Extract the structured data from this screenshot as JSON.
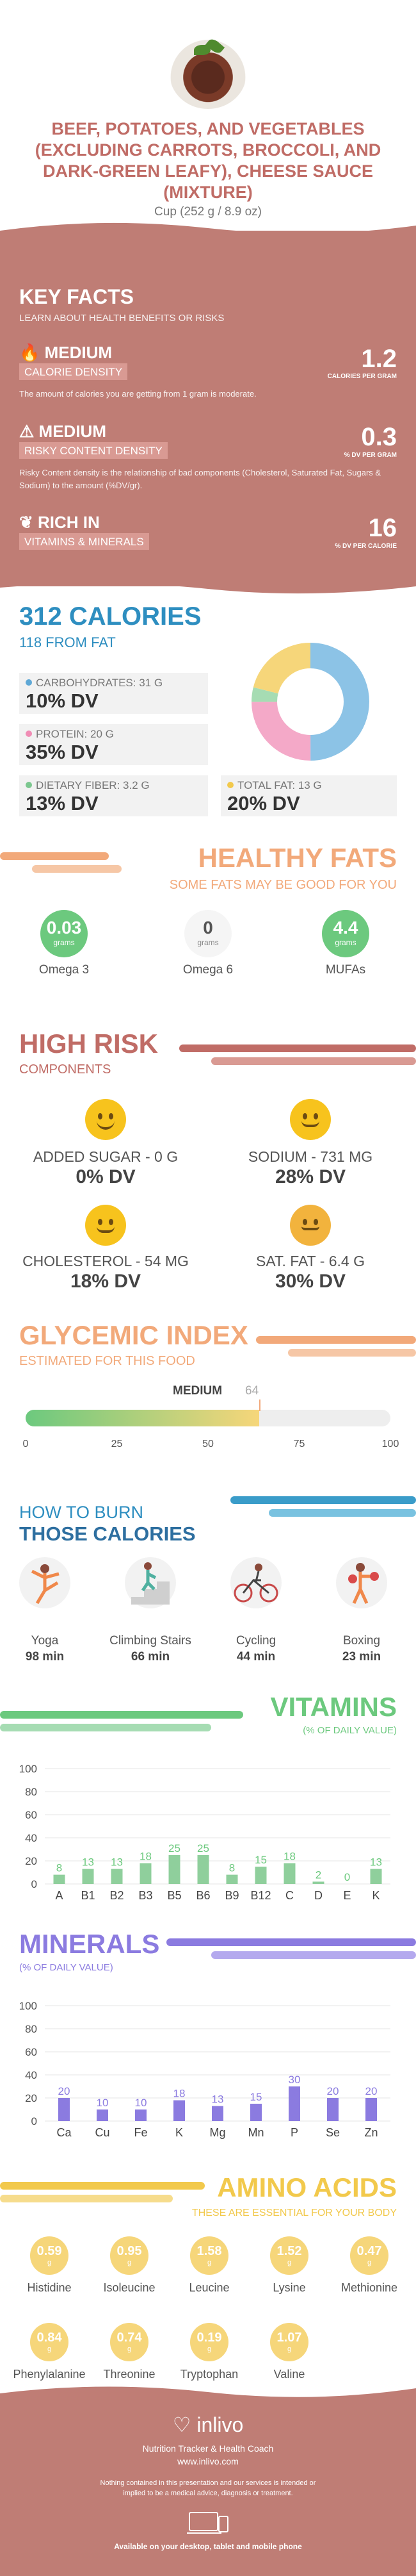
{
  "header": {
    "title": "BEEF, POTATOES, AND VEGETABLES (EXCLUDING CARROTS, BROCCOLI, AND DARK-GREEN LEAFY), CHEESE SAUCE (MIXTURE)",
    "serving": "Cup (252 g / 8.9 oz)"
  },
  "key_facts": {
    "heading": "KEY FACTS",
    "subheading": "LEARN ABOUT HEALTH BENEFITS OR RISKS",
    "calorie_density": {
      "level": "MEDIUM",
      "tag": "CALORIE DENSITY",
      "value": "1.2",
      "unit": "CALORIES PER GRAM",
      "desc": "The amount of calories you are getting from 1 gram is moderate."
    },
    "risky": {
      "level": "MEDIUM",
      "tag": "RISKY CONTENT DENSITY",
      "value": "0.3",
      "unit": "% DV PER GRAM",
      "desc": "Risky Content density is the relationship of bad components (Cholesterol, Saturated Fat, Sugars & Sodium) to the amount (%DV/gr)."
    },
    "vitamins": {
      "level": "RICH IN",
      "tag": "VITAMINS & MINERALS",
      "value": "16",
      "unit": "% DV PER CALORIE"
    }
  },
  "calories": {
    "heading": "312 CALORIES",
    "from_fat": "118 FROM FAT",
    "carbs_label": "CARBOHYDRATES: 31 g",
    "carbs_dv": "10% DV",
    "protein_label": "PROTEIN: 20 g",
    "protein_dv": "35% DV",
    "fiber_label": "DIETARY FIBER: 3.2 g",
    "fiber_dv": "13% DV",
    "fat_label": "TOTAL FAT: 13 g",
    "fat_dv": "20% DV",
    "colors": {
      "carbs": "#8cc3e6",
      "protein": "#f4a9c8",
      "fiber": "#a6dcb3",
      "fat": "#f6d67a"
    }
  },
  "healthy_fats": {
    "heading": "HEALTHY FATS",
    "sub": "SOME FATS MAY BE GOOD FOR YOU",
    "items": [
      {
        "value": "0.03",
        "unit": "grams",
        "name": "Omega 3"
      },
      {
        "value": "0",
        "unit": "grams",
        "name": "Omega 6"
      },
      {
        "value": "4.4",
        "unit": "grams",
        "name": "MUFAs"
      }
    ]
  },
  "high_risk": {
    "heading": "HIGH RISK",
    "sub": "COMPONENTS",
    "items": [
      {
        "label": "ADDED SUGAR - 0 g",
        "dv": "0% DV"
      },
      {
        "label": "SODIUM - 731 mg",
        "dv": "28% DV"
      },
      {
        "label": "CHOLESTEROL - 54 mg",
        "dv": "18% DV"
      },
      {
        "label": "SAT. FAT - 6.4 g",
        "dv": "30% DV"
      }
    ]
  },
  "glycemic": {
    "heading": "GLYCEMIC INDEX",
    "sub": "ESTIMATED FOR THIS FOOD",
    "level": "MEDIUM",
    "value": 64,
    "value_text": "64",
    "ticks": [
      "0",
      "25",
      "50",
      "75",
      "100"
    ]
  },
  "burn": {
    "heading1": "HOW TO BURN",
    "heading2": "THOSE CALORIES",
    "items": [
      {
        "name": "Yoga",
        "time": "98 min",
        "icon": "yoga-icon"
      },
      {
        "name": "Climbing Stairs",
        "time": "66 min",
        "icon": "stairs-icon"
      },
      {
        "name": "Cycling",
        "time": "44 min",
        "icon": "cycling-icon"
      },
      {
        "name": "Boxing",
        "time": "23 min",
        "icon": "boxing-icon"
      }
    ]
  },
  "chart_data": [
    {
      "type": "bar",
      "title": "VITAMINS",
      "subtitle": "(% OF DAILY VALUE)",
      "categories": [
        "A",
        "B1",
        "B2",
        "B3",
        "B5",
        "B6",
        "B9",
        "B12",
        "C",
        "D",
        "E",
        "K"
      ],
      "values": [
        8,
        13,
        13,
        18,
        25,
        25,
        8,
        15,
        18,
        2,
        0,
        13
      ],
      "ylim": [
        0,
        100
      ],
      "yticks": [
        "0",
        "20",
        "40",
        "60",
        "80",
        "100"
      ],
      "color": "#8fcf9c"
    },
    {
      "type": "bar",
      "title": "MINERALS",
      "subtitle": "(% OF DAILY VALUE)",
      "categories": [
        "Ca",
        "Cu",
        "Fe",
        "K",
        "Mg",
        "Mn",
        "P",
        "Se",
        "Zn"
      ],
      "values": [
        20,
        10,
        10,
        18,
        13,
        15,
        30,
        20,
        20
      ],
      "ylim": [
        0,
        100
      ],
      "yticks": [
        "0",
        "20",
        "40",
        "60",
        "80",
        "100"
      ],
      "color": "#8b7be0"
    }
  ],
  "amino": {
    "heading": "AMINO ACIDS",
    "sub": "THESE ARE ESSENTIAL FOR YOUR BODY",
    "unit": "g",
    "items": [
      {
        "value": "0.59",
        "name": "Histidine"
      },
      {
        "value": "0.95",
        "name": "Isoleucine"
      },
      {
        "value": "1.58",
        "name": "Leucine"
      },
      {
        "value": "1.52",
        "name": "Lysine"
      },
      {
        "value": "0.47",
        "name": "Methionine"
      },
      {
        "value": "0.84",
        "name": "Phenylalanine"
      },
      {
        "value": "0.74",
        "name": "Threonine"
      },
      {
        "value": "0.19",
        "name": "Tryptophan"
      },
      {
        "value": "1.07",
        "name": "Valine"
      }
    ]
  },
  "footer": {
    "brand": "inlivo",
    "tagline": "Nutrition Tracker & Health Coach",
    "url": "www.inlivo.com",
    "disclaimer": "Nothing contained in this presentation and our services is intended or implied to be a medical advice, diagnosis or treatment.",
    "available": "Available on your desktop, tablet and mobile phone"
  }
}
